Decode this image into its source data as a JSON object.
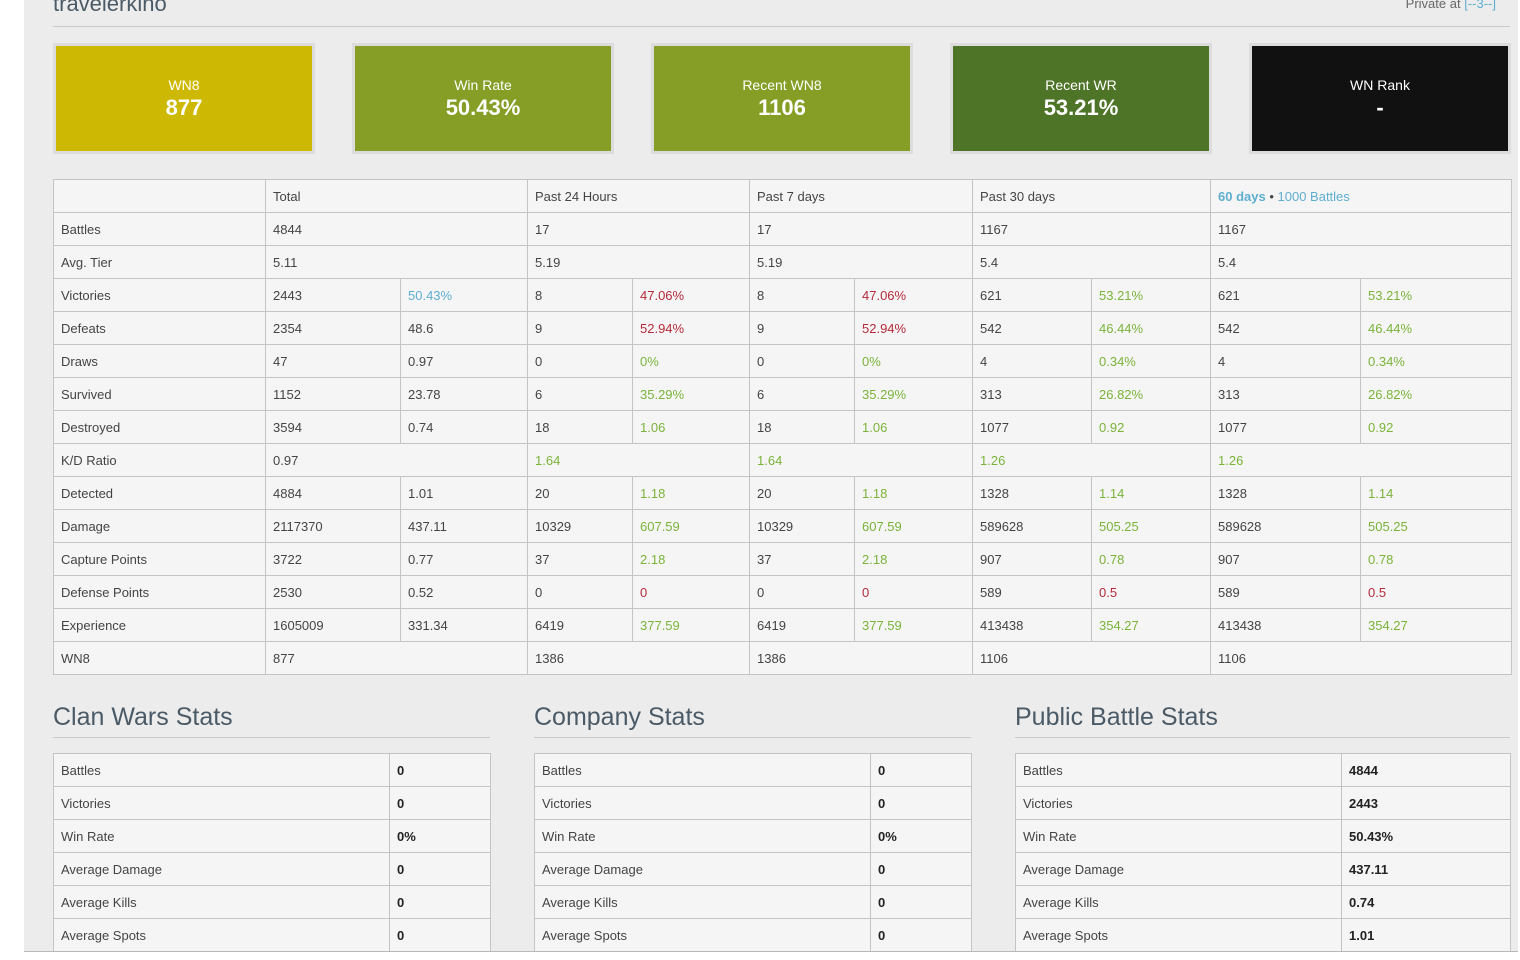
{
  "player": {
    "name": "travelerkino",
    "privacy_label": "Private at",
    "privacy_link": "[--3--]"
  },
  "stat_boxes": [
    {
      "label": "WN8",
      "value": "877",
      "color": "#cdb903"
    },
    {
      "label": "Win Rate",
      "value": "50.43%",
      "color": "#869e25"
    },
    {
      "label": "Recent WN8",
      "value": "1106",
      "color": "#869e25"
    },
    {
      "label": "Recent WR",
      "value": "53.21%",
      "color": "#4e7427"
    },
    {
      "label": "WN Rank",
      "value": "-",
      "color": "#111111"
    }
  ],
  "main_table": {
    "headers": {
      "total": "Total",
      "past24": "Past 24 Hours",
      "past7": "Past 7 days",
      "past30": "Past 30 days",
      "sixty_days": "60 days",
      "sixty_sep": "•",
      "sixty_battles": "1000 Battles"
    },
    "rows": {
      "battles": {
        "label": "Battles",
        "total": "4844",
        "p24": "17",
        "p7": "17",
        "p30": "1167",
        "p60": "1167"
      },
      "avg_tier": {
        "label": "Avg. Tier",
        "total": "5.11",
        "p24": "5.19",
        "p7": "5.19",
        "p30": "5.4",
        "p60": "5.4"
      },
      "victories": {
        "label": "Victories",
        "total": "2443",
        "total_r": "50.43%",
        "p24": "8",
        "p24_r": "47.06%",
        "p7": "8",
        "p7_r": "47.06%",
        "p30": "621",
        "p30_r": "53.21%",
        "p60": "621",
        "p60_r": "53.21%"
      },
      "defeats": {
        "label": "Defeats",
        "total": "2354",
        "total_r": "48.6",
        "p24": "9",
        "p24_r": "52.94%",
        "p7": "9",
        "p7_r": "52.94%",
        "p30": "542",
        "p30_r": "46.44%",
        "p60": "542",
        "p60_r": "46.44%"
      },
      "draws": {
        "label": "Draws",
        "total": "47",
        "total_r": "0.97",
        "p24": "0",
        "p24_r": "0%",
        "p7": "0",
        "p7_r": "0%",
        "p30": "4",
        "p30_r": "0.34%",
        "p60": "4",
        "p60_r": "0.34%"
      },
      "survived": {
        "label": "Survived",
        "total": "1152",
        "total_r": "23.78",
        "p24": "6",
        "p24_r": "35.29%",
        "p7": "6",
        "p7_r": "35.29%",
        "p30": "313",
        "p30_r": "26.82%",
        "p60": "313",
        "p60_r": "26.82%"
      },
      "destroyed": {
        "label": "Destroyed",
        "total": "3594",
        "total_r": "0.74",
        "p24": "18",
        "p24_r": "1.06",
        "p7": "18",
        "p7_r": "1.06",
        "p30": "1077",
        "p30_r": "0.92",
        "p60": "1077",
        "p60_r": "0.92"
      },
      "kd": {
        "label": "K/D Ratio",
        "total": "0.97",
        "p24": "1.64",
        "p7": "1.64",
        "p30": "1.26",
        "p60": "1.26"
      },
      "detected": {
        "label": "Detected",
        "total": "4884",
        "total_r": "1.01",
        "p24": "20",
        "p24_r": "1.18",
        "p7": "20",
        "p7_r": "1.18",
        "p30": "1328",
        "p30_r": "1.14",
        "p60": "1328",
        "p60_r": "1.14"
      },
      "damage": {
        "label": "Damage",
        "total": "2117370",
        "total_r": "437.11",
        "p24": "10329",
        "p24_r": "607.59",
        "p7": "10329",
        "p7_r": "607.59",
        "p30": "589628",
        "p30_r": "505.25",
        "p60": "589628",
        "p60_r": "505.25"
      },
      "capture": {
        "label": "Capture Points",
        "total": "3722",
        "total_r": "0.77",
        "p24": "37",
        "p24_r": "2.18",
        "p7": "37",
        "p7_r": "2.18",
        "p30": "907",
        "p30_r": "0.78",
        "p60": "907",
        "p60_r": "0.78"
      },
      "defense": {
        "label": "Defense Points",
        "total": "2530",
        "total_r": "0.52",
        "p24": "0",
        "p24_r": "0",
        "p7": "0",
        "p7_r": "0",
        "p30": "589",
        "p30_r": "0.5",
        "p60": "589",
        "p60_r": "0.5"
      },
      "experience": {
        "label": "Experience",
        "total": "1605009",
        "total_r": "331.34",
        "p24": "6419",
        "p24_r": "377.59",
        "p7": "6419",
        "p7_r": "377.59",
        "p30": "413438",
        "p30_r": "354.27",
        "p60": "413438",
        "p60_r": "354.27"
      },
      "wn8": {
        "label": "WN8",
        "total": "877",
        "p24": "1386",
        "p7": "1386",
        "p30": "1106",
        "p60": "1106"
      }
    }
  },
  "sections": {
    "clan_wars": {
      "title": "Clan Wars Stats",
      "rows": [
        {
          "label": "Battles",
          "value": "0"
        },
        {
          "label": "Victories",
          "value": "0"
        },
        {
          "label": "Win Rate",
          "value": "0%"
        },
        {
          "label": "Average Damage",
          "value": "0"
        },
        {
          "label": "Average Kills",
          "value": "0"
        },
        {
          "label": "Average Spots",
          "value": "0"
        }
      ]
    },
    "company": {
      "title": "Company Stats",
      "rows": [
        {
          "label": "Battles",
          "value": "0"
        },
        {
          "label": "Victories",
          "value": "0"
        },
        {
          "label": "Win Rate",
          "value": "0%"
        },
        {
          "label": "Average Damage",
          "value": "0"
        },
        {
          "label": "Average Kills",
          "value": "0"
        },
        {
          "label": "Average Spots",
          "value": "0"
        }
      ]
    },
    "public": {
      "title": "Public Battle Stats",
      "rows": [
        {
          "label": "Battles",
          "value": "4844"
        },
        {
          "label": "Victories",
          "value": "2443"
        },
        {
          "label": "Win Rate",
          "value": "50.43%"
        },
        {
          "label": "Average Damage",
          "value": "437.11"
        },
        {
          "label": "Average Kills",
          "value": "0.74"
        },
        {
          "label": "Average Spots",
          "value": "1.01"
        }
      ]
    }
  },
  "colors": {
    "good": "#7bb33a",
    "bad": "#b42a3a",
    "link": "#5eaed0"
  }
}
